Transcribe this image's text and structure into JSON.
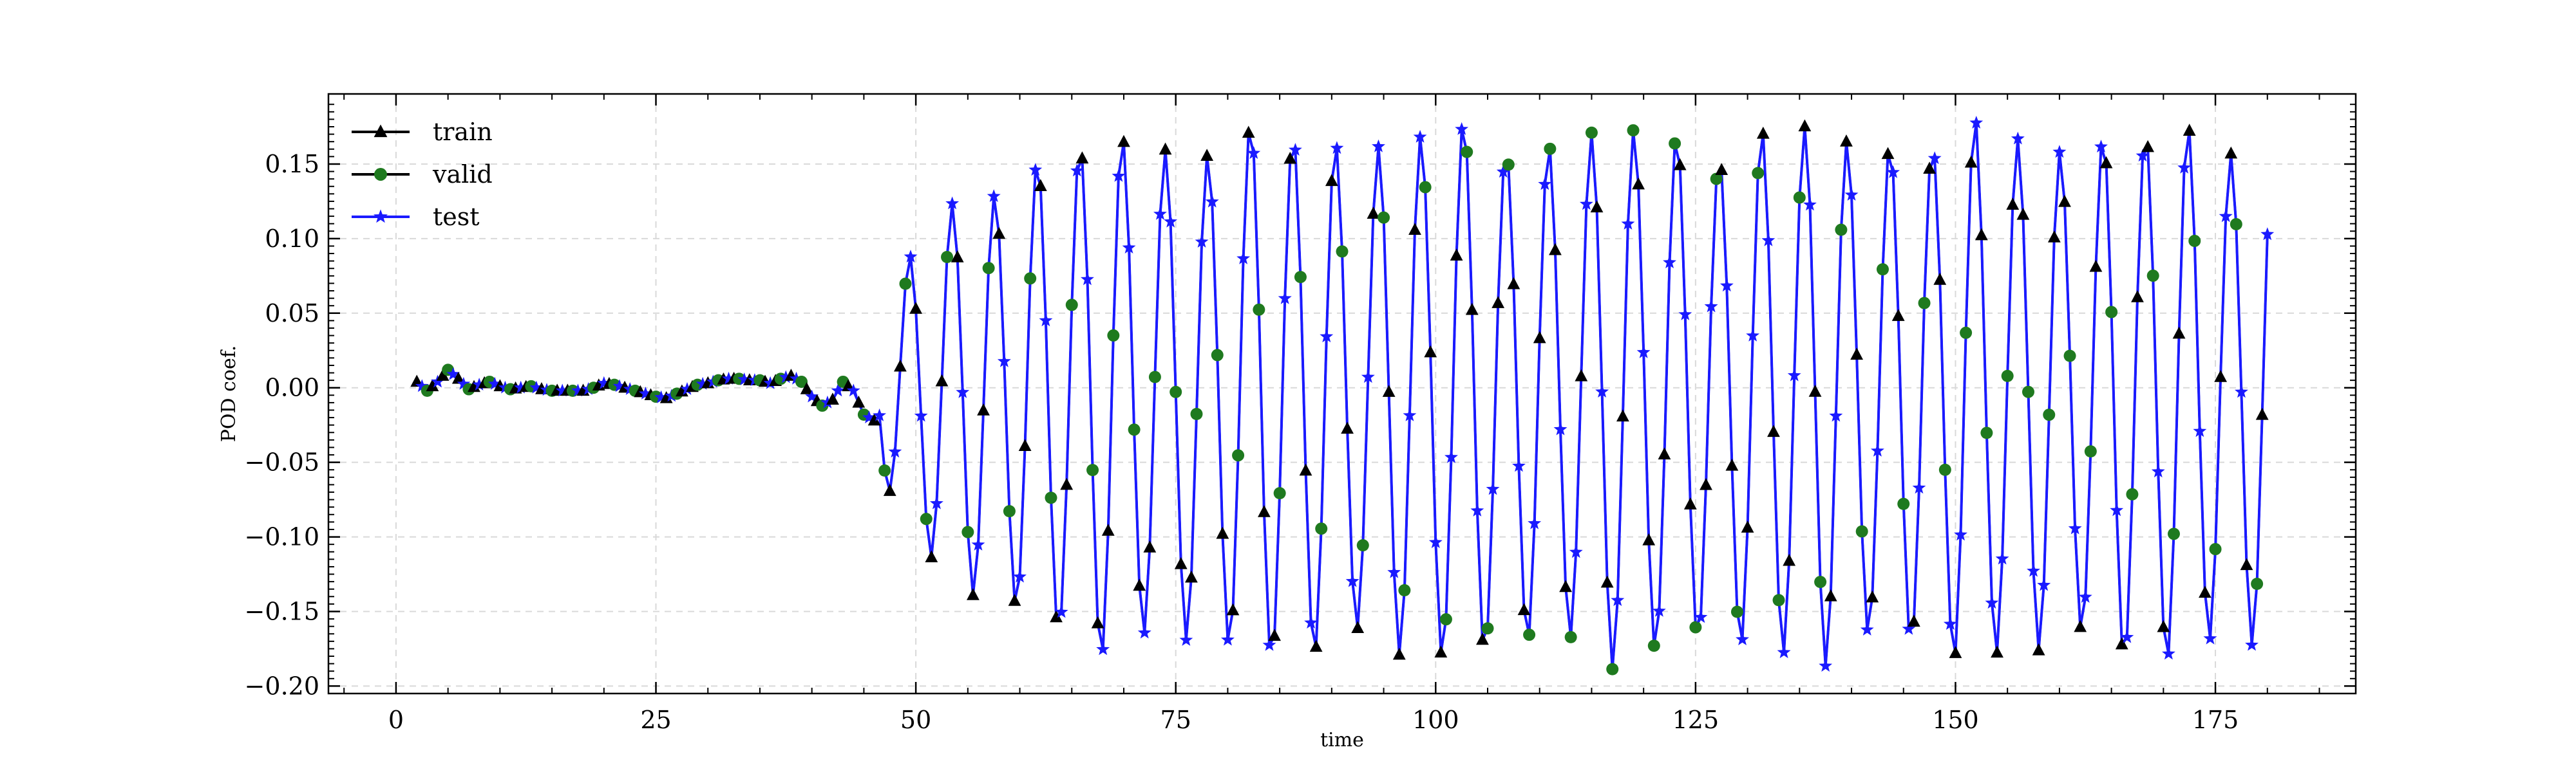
{
  "chart_data": {
    "type": "line",
    "title": "",
    "xlabel": "time",
    "ylabel": "POD coef.",
    "xlim": [
      -6.5,
      188.5
    ],
    "ylim": [
      -0.205,
      0.197
    ],
    "xticks": [
      0,
      25,
      50,
      75,
      100,
      125,
      150,
      175
    ],
    "xtick_labels": [
      "0",
      "25",
      "50",
      "75",
      "100",
      "125",
      "150",
      "175"
    ],
    "yticks": [
      -0.2,
      -0.15,
      -0.1,
      -0.05,
      0.0,
      0.05,
      0.1,
      0.15
    ],
    "ytick_labels": [
      "−0.20",
      "−0.15",
      "−0.10",
      "−0.05",
      "0.00",
      "0.05",
      "0.10",
      "0.15"
    ],
    "grid": true,
    "legend_position": "top-left",
    "signal_model": {
      "t_start": 2.0,
      "t_end": 180.0,
      "sample_step": 0.5,
      "transient_points": [
        [
          2.0,
          0.004
        ],
        [
          3.0,
          -0.002
        ],
        [
          4.0,
          0.004
        ],
        [
          5.0,
          0.012
        ],
        [
          6.0,
          0.006
        ],
        [
          7.0,
          -0.001
        ],
        [
          8.0,
          0.002
        ],
        [
          9.0,
          0.004
        ],
        [
          10.0,
          0.001
        ],
        [
          11.0,
          -0.001
        ],
        [
          12.0,
          0.0
        ],
        [
          13.0,
          0.001
        ],
        [
          14.0,
          -0.001
        ],
        [
          15.0,
          -0.002
        ],
        [
          16.0,
          -0.002
        ],
        [
          17.0,
          -0.002
        ],
        [
          18.0,
          -0.002
        ],
        [
          19.0,
          0.0
        ],
        [
          20.0,
          0.003
        ],
        [
          21.0,
          0.002
        ],
        [
          22.0,
          0.0
        ],
        [
          23.0,
          -0.002
        ],
        [
          24.0,
          -0.004
        ],
        [
          25.0,
          -0.006
        ],
        [
          26.0,
          -0.007
        ],
        [
          27.0,
          -0.004
        ],
        [
          28.0,
          -0.001
        ],
        [
          29.0,
          0.002
        ],
        [
          30.0,
          0.003
        ],
        [
          31.0,
          0.005
        ],
        [
          32.0,
          0.006
        ],
        [
          33.0,
          0.006
        ],
        [
          34.0,
          0.005
        ],
        [
          35.0,
          0.005
        ],
        [
          36.0,
          0.003
        ],
        [
          37.0,
          0.006
        ],
        [
          38.0,
          0.008
        ],
        [
          39.0,
          0.004
        ],
        [
          40.0,
          -0.006
        ],
        [
          41.0,
          -0.012
        ],
        [
          42.0,
          -0.008
        ],
        [
          43.0,
          0.004
        ],
        [
          44.0,
          -0.002
        ],
        [
          45.0,
          -0.018
        ],
        [
          46.0,
          -0.022
        ]
      ],
      "oscillation_start": 46.0,
      "period": 4.1,
      "amplitude_start": 0.04,
      "amplitude_max": 0.172,
      "growth_tau": 7.5,
      "mean_offset": -0.004
    },
    "series": [
      {
        "name": "train",
        "color": "#000000",
        "line_color": "#00004d",
        "marker": "triangle"
      },
      {
        "name": "valid",
        "color": "#1f7a1f",
        "line_color": "#00004d",
        "marker": "circle"
      },
      {
        "name": "test",
        "color": "#1a1aff",
        "line_color": "#1a1aff",
        "marker": "star"
      }
    ]
  }
}
